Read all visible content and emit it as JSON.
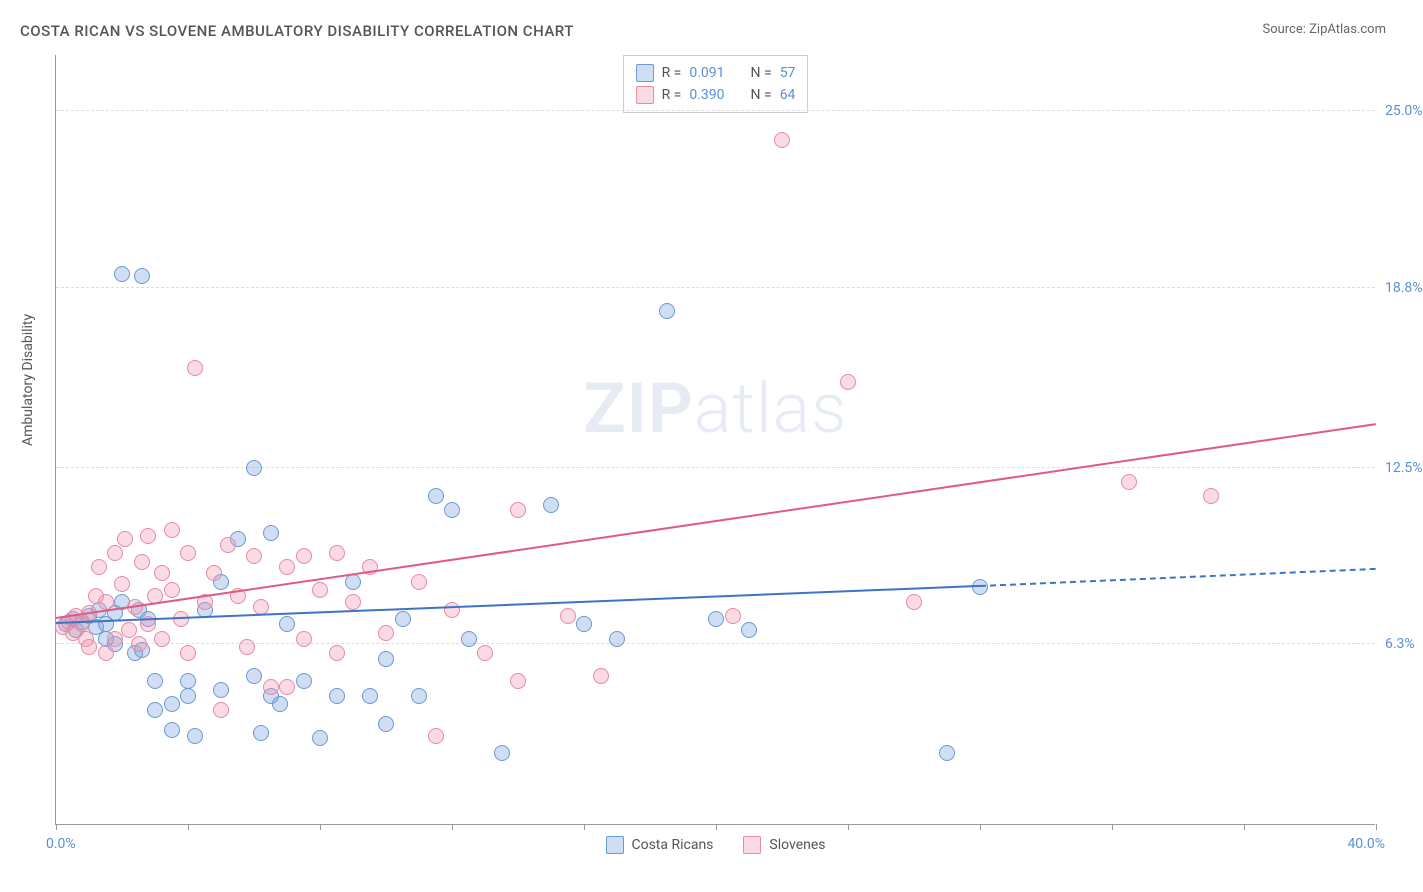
{
  "title": "COSTA RICAN VS SLOVENE AMBULATORY DISABILITY CORRELATION CHART",
  "source_label": "Source: ",
  "source_name": "ZipAtlas.com",
  "ylabel": "Ambulatory Disability",
  "watermark_a": "ZIP",
  "watermark_b": "atlas",
  "chart": {
    "type": "scatter",
    "xlim": [
      0,
      40
    ],
    "ylim": [
      0,
      27
    ],
    "x_origin_label": "0.0%",
    "x_max_label": "40.0%",
    "y_ticks": [
      {
        "value": 6.3,
        "label": "6.3%"
      },
      {
        "value": 12.5,
        "label": "12.5%"
      },
      {
        "value": 18.8,
        "label": "18.8%"
      },
      {
        "value": 25.0,
        "label": "25.0%"
      }
    ],
    "x_tick_values": [
      0,
      4,
      8,
      12,
      16,
      20,
      24,
      28,
      32,
      36,
      40
    ],
    "background_color": "#ffffff",
    "grid_color": "#dddddd",
    "marker_radius": 8,
    "series": [
      {
        "id": "costa_ricans",
        "label": "Costa Ricans",
        "fill_color": "rgba(120,160,220,0.35)",
        "stroke_color": "#6a9ad4",
        "line_color": "#3e74c4",
        "r_value": "0.091",
        "n_value": "57",
        "trend": {
          "x1": 0,
          "y1": 7.0,
          "x2": 28,
          "y2": 8.3,
          "x_dash_end": 40,
          "y_dash_end": 8.9
        },
        "points": [
          [
            0.3,
            7.0
          ],
          [
            0.5,
            7.2
          ],
          [
            0.6,
            6.8
          ],
          [
            0.8,
            7.1
          ],
          [
            1.0,
            7.3
          ],
          [
            1.2,
            6.9
          ],
          [
            1.3,
            7.5
          ],
          [
            1.5,
            6.5
          ],
          [
            1.5,
            7.0
          ],
          [
            1.8,
            6.3
          ],
          [
            1.8,
            7.4
          ],
          [
            2.0,
            19.3
          ],
          [
            2.0,
            7.8
          ],
          [
            2.4,
            6.0
          ],
          [
            2.5,
            7.5
          ],
          [
            2.6,
            19.2
          ],
          [
            2.6,
            6.1
          ],
          [
            2.8,
            7.2
          ],
          [
            3.0,
            5.0
          ],
          [
            3.0,
            4.0
          ],
          [
            3.5,
            4.2
          ],
          [
            3.5,
            3.3
          ],
          [
            4.0,
            5.0
          ],
          [
            4.0,
            4.5
          ],
          [
            4.2,
            3.1
          ],
          [
            4.5,
            7.5
          ],
          [
            5.0,
            4.7
          ],
          [
            5.0,
            8.5
          ],
          [
            5.5,
            10.0
          ],
          [
            6.0,
            5.2
          ],
          [
            6.0,
            12.5
          ],
          [
            6.2,
            3.2
          ],
          [
            6.5,
            4.5
          ],
          [
            6.5,
            10.2
          ],
          [
            6.8,
            4.2
          ],
          [
            7.0,
            7.0
          ],
          [
            7.5,
            5.0
          ],
          [
            8.0,
            3.0
          ],
          [
            8.5,
            4.5
          ],
          [
            9.0,
            8.5
          ],
          [
            9.5,
            4.5
          ],
          [
            10.0,
            5.8
          ],
          [
            10.0,
            3.5
          ],
          [
            10.5,
            7.2
          ],
          [
            11.0,
            4.5
          ],
          [
            11.5,
            11.5
          ],
          [
            12.0,
            11.0
          ],
          [
            12.5,
            6.5
          ],
          [
            13.5,
            2.5
          ],
          [
            15.0,
            11.2
          ],
          [
            16.0,
            7.0
          ],
          [
            17.0,
            6.5
          ],
          [
            18.5,
            18.0
          ],
          [
            20.0,
            7.2
          ],
          [
            21.0,
            6.8
          ],
          [
            27.0,
            2.5
          ],
          [
            28.0,
            8.3
          ]
        ]
      },
      {
        "id": "slovenes",
        "label": "Slovenes",
        "fill_color": "rgba(240,150,175,0.35)",
        "stroke_color": "#e68aa5",
        "line_color": "#e05a85",
        "r_value": "0.390",
        "n_value": "64",
        "trend": {
          "x1": 0,
          "y1": 7.2,
          "x2": 40,
          "y2": 14.0
        },
        "points": [
          [
            0.2,
            6.9
          ],
          [
            0.4,
            7.1
          ],
          [
            0.5,
            6.7
          ],
          [
            0.6,
            7.3
          ],
          [
            0.8,
            7.0
          ],
          [
            0.9,
            6.5
          ],
          [
            1.0,
            7.4
          ],
          [
            1.0,
            6.2
          ],
          [
            1.2,
            8.0
          ],
          [
            1.3,
            9.0
          ],
          [
            1.5,
            7.8
          ],
          [
            1.5,
            6.0
          ],
          [
            1.8,
            9.5
          ],
          [
            1.8,
            6.5
          ],
          [
            2.0,
            8.4
          ],
          [
            2.1,
            10.0
          ],
          [
            2.2,
            6.8
          ],
          [
            2.4,
            7.6
          ],
          [
            2.5,
            6.3
          ],
          [
            2.6,
            9.2
          ],
          [
            2.8,
            7.0
          ],
          [
            2.8,
            10.1
          ],
          [
            3.0,
            8.0
          ],
          [
            3.2,
            6.5
          ],
          [
            3.2,
            8.8
          ],
          [
            3.5,
            8.2
          ],
          [
            3.5,
            10.3
          ],
          [
            3.8,
            7.2
          ],
          [
            4.0,
            9.5
          ],
          [
            4.0,
            6.0
          ],
          [
            4.2,
            16.0
          ],
          [
            4.5,
            7.8
          ],
          [
            4.8,
            8.8
          ],
          [
            5.0,
            4.0
          ],
          [
            5.2,
            9.8
          ],
          [
            5.5,
            8.0
          ],
          [
            5.8,
            6.2
          ],
          [
            6.0,
            9.4
          ],
          [
            6.2,
            7.6
          ],
          [
            6.5,
            4.8
          ],
          [
            7.0,
            9.0
          ],
          [
            7.0,
            4.8
          ],
          [
            7.5,
            6.5
          ],
          [
            7.5,
            9.4
          ],
          [
            8.0,
            8.2
          ],
          [
            8.5,
            6.0
          ],
          [
            8.5,
            9.5
          ],
          [
            9.0,
            7.8
          ],
          [
            9.5,
            9.0
          ],
          [
            10.0,
            6.7
          ],
          [
            11.0,
            8.5
          ],
          [
            11.5,
            3.1
          ],
          [
            12.0,
            7.5
          ],
          [
            13.0,
            6.0
          ],
          [
            14.0,
            11.0
          ],
          [
            14.0,
            5.0
          ],
          [
            15.5,
            7.3
          ],
          [
            16.5,
            5.2
          ],
          [
            20.5,
            7.3
          ],
          [
            22.0,
            24.0
          ],
          [
            24.0,
            15.5
          ],
          [
            26.0,
            7.8
          ],
          [
            32.5,
            12.0
          ],
          [
            35.0,
            11.5
          ]
        ]
      }
    ],
    "legend_top": {
      "r_label": "R =",
      "n_label": "N ="
    }
  }
}
